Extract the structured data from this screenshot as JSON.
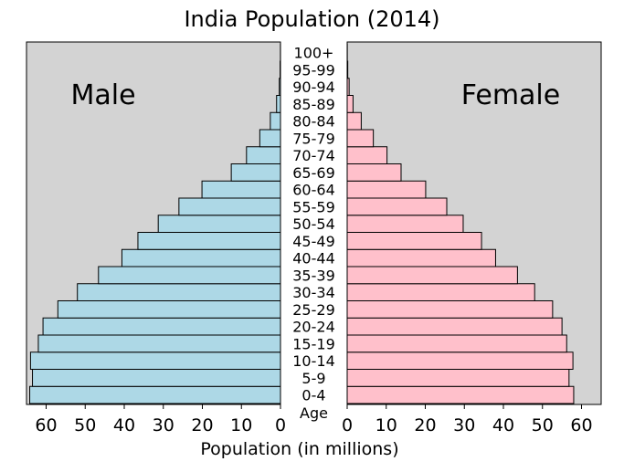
{
  "chart_data": {
    "type": "bar",
    "orientation": "horizontal-population-pyramid",
    "title": "India Population (2014)",
    "xlabel": "Population (in millions)",
    "ylabel": "Age",
    "panels": {
      "left": {
        "label": "Male",
        "xlim": [
          65,
          0
        ]
      },
      "right": {
        "label": "Female",
        "xlim": [
          0,
          65
        ]
      }
    },
    "xticks": [
      0,
      10,
      20,
      30,
      40,
      50,
      60
    ],
    "xtick_labels": [
      "0",
      "10",
      "20",
      "30",
      "40",
      "50",
      "60"
    ],
    "grid": false,
    "categories": [
      "0-4",
      "5-9",
      "10-14",
      "15-19",
      "20-24",
      "25-29",
      "30-34",
      "35-39",
      "40-44",
      "45-49",
      "50-54",
      "55-59",
      "60-64",
      "65-69",
      "70-74",
      "75-79",
      "80-84",
      "85-89",
      "90-94",
      "95-99",
      "100+"
    ],
    "series": [
      {
        "name": "Male",
        "color": "#add8e6",
        "values": [
          64.2,
          63.5,
          64.0,
          62.0,
          60.8,
          57.0,
          52.0,
          46.6,
          40.6,
          36.5,
          31.3,
          26.0,
          20.1,
          12.6,
          8.7,
          5.3,
          2.6,
          1.0,
          0.3,
          0.1,
          0.02
        ]
      },
      {
        "name": "Female",
        "color": "#ffc0cb",
        "values": [
          58.0,
          56.8,
          57.8,
          56.2,
          55.0,
          52.6,
          48.0,
          43.6,
          38.0,
          34.4,
          29.7,
          25.5,
          20.1,
          13.8,
          10.2,
          6.7,
          3.6,
          1.5,
          0.5,
          0.15,
          0.03
        ]
      }
    ],
    "colors": {
      "panel_background": "#d3d3d3",
      "page_background": "#ffffff",
      "bar_edge": "#000000"
    }
  }
}
